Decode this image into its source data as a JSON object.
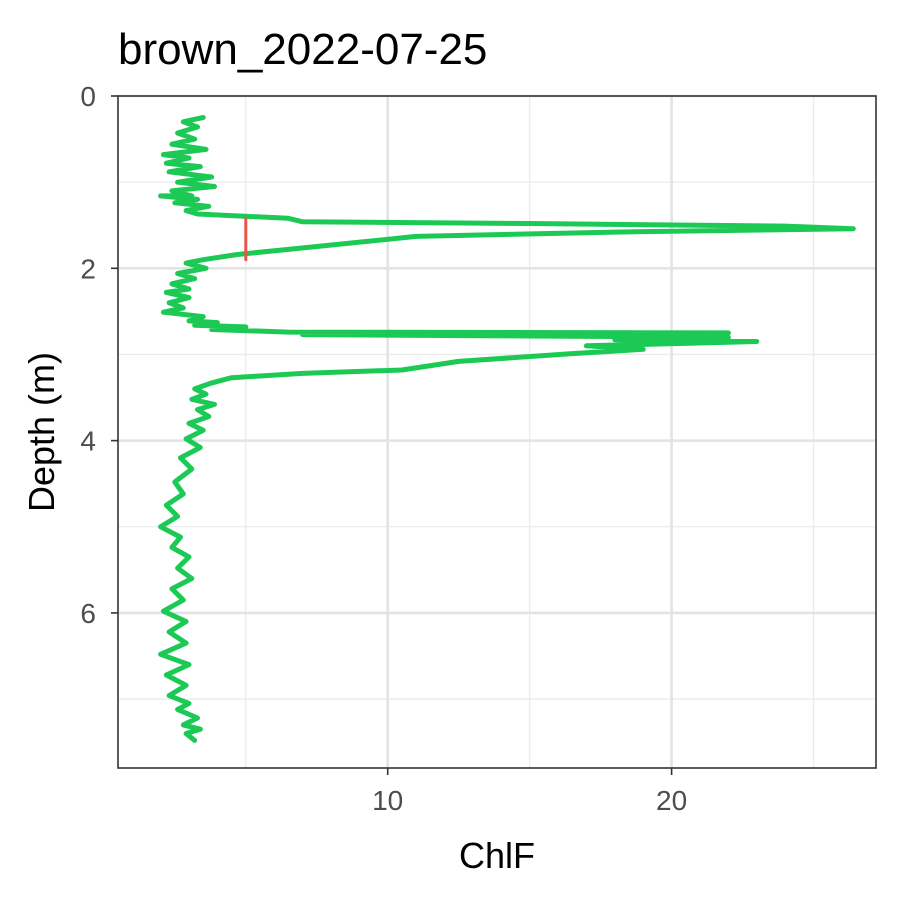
{
  "chart_data": {
    "type": "line",
    "title": "brown_2022-07-25",
    "xlabel": "ChlF",
    "ylabel": "Depth (m)",
    "xlim": [
      0.5,
      27.2
    ],
    "ylim": [
      0,
      7.8
    ],
    "y_reversed": true,
    "x_ticks": [
      10,
      20
    ],
    "x_minor_ticks": [
      5,
      15,
      25
    ],
    "y_ticks": [
      0,
      2,
      4,
      6
    ],
    "y_minor_ticks": [
      1,
      3,
      5,
      7
    ],
    "grid": true,
    "theme": "bw",
    "series": [
      {
        "color": "#1cc954",
        "points": [
          [
            3.5,
            0.25
          ],
          [
            2.8,
            0.3
          ],
          [
            3.3,
            0.36
          ],
          [
            2.6,
            0.43
          ],
          [
            3.2,
            0.5
          ],
          [
            2.4,
            0.56
          ],
          [
            3.6,
            0.62
          ],
          [
            2.1,
            0.68
          ],
          [
            3.0,
            0.72
          ],
          [
            2.2,
            0.78
          ],
          [
            3.4,
            0.82
          ],
          [
            2.3,
            0.88
          ],
          [
            3.8,
            0.94
          ],
          [
            2.6,
            1.0
          ],
          [
            3.9,
            1.05
          ],
          [
            2.4,
            1.1
          ],
          [
            3.1,
            1.16
          ],
          [
            2.0,
            1.16
          ],
          [
            3.3,
            1.2
          ],
          [
            2.5,
            1.24
          ],
          [
            3.7,
            1.28
          ],
          [
            2.9,
            1.33
          ],
          [
            3.3,
            1.37
          ],
          [
            6.5,
            1.42
          ],
          [
            7.0,
            1.46
          ],
          [
            15.0,
            1.48
          ],
          [
            24.0,
            1.51
          ],
          [
            26.4,
            1.54
          ],
          [
            18.0,
            1.58
          ],
          [
            11.0,
            1.63
          ],
          [
            6.5,
            1.78
          ],
          [
            4.7,
            1.84
          ],
          [
            3.5,
            1.9
          ],
          [
            2.9,
            1.94
          ],
          [
            3.6,
            2.0
          ],
          [
            2.6,
            2.06
          ],
          [
            3.2,
            2.12
          ],
          [
            2.4,
            2.18
          ],
          [
            3.0,
            2.24
          ],
          [
            2.2,
            2.28
          ],
          [
            3.0,
            2.34
          ],
          [
            2.3,
            2.4
          ],
          [
            2.8,
            2.46
          ],
          [
            2.1,
            2.51
          ],
          [
            3.5,
            2.56
          ],
          [
            3.0,
            2.61
          ],
          [
            4.0,
            2.63
          ],
          [
            3.2,
            2.66
          ],
          [
            5.0,
            2.68
          ],
          [
            3.8,
            2.71
          ],
          [
            6.5,
            2.74
          ],
          [
            22.0,
            2.75
          ],
          [
            7.0,
            2.77
          ],
          [
            22.0,
            2.8
          ],
          [
            18.0,
            2.83
          ],
          [
            23.0,
            2.85
          ],
          [
            17.0,
            2.9
          ],
          [
            19.0,
            2.94
          ],
          [
            16.5,
            2.99
          ],
          [
            12.5,
            3.08
          ],
          [
            10.5,
            3.18
          ],
          [
            7.0,
            3.22
          ],
          [
            4.5,
            3.27
          ],
          [
            3.8,
            3.33
          ],
          [
            3.2,
            3.4
          ],
          [
            3.6,
            3.46
          ],
          [
            3.1,
            3.52
          ],
          [
            3.9,
            3.58
          ],
          [
            3.3,
            3.64
          ],
          [
            3.7,
            3.72
          ],
          [
            3.0,
            3.8
          ],
          [
            3.5,
            3.88
          ],
          [
            2.9,
            3.98
          ],
          [
            3.4,
            4.08
          ],
          [
            2.7,
            4.2
          ],
          [
            3.1,
            4.33
          ],
          [
            2.5,
            4.48
          ],
          [
            2.8,
            4.62
          ],
          [
            2.2,
            4.75
          ],
          [
            2.6,
            4.88
          ],
          [
            2.0,
            5.0
          ],
          [
            2.7,
            5.12
          ],
          [
            2.4,
            5.24
          ],
          [
            3.0,
            5.35
          ],
          [
            2.6,
            5.48
          ],
          [
            3.1,
            5.6
          ],
          [
            2.4,
            5.72
          ],
          [
            2.8,
            5.85
          ],
          [
            2.1,
            5.98
          ],
          [
            2.9,
            6.1
          ],
          [
            2.3,
            6.22
          ],
          [
            2.9,
            6.35
          ],
          [
            2.0,
            6.48
          ],
          [
            3.0,
            6.6
          ],
          [
            2.2,
            6.72
          ],
          [
            2.9,
            6.84
          ],
          [
            2.3,
            6.96
          ],
          [
            3.0,
            7.05
          ],
          [
            2.6,
            7.12
          ],
          [
            3.3,
            7.22
          ],
          [
            2.8,
            7.3
          ],
          [
            3.4,
            7.35
          ],
          [
            2.9,
            7.4
          ],
          [
            3.2,
            7.48
          ]
        ]
      },
      {
        "color": "#e8564b",
        "points": [
          [
            5.0,
            1.42
          ],
          [
            5.0,
            1.9
          ]
        ]
      }
    ]
  }
}
